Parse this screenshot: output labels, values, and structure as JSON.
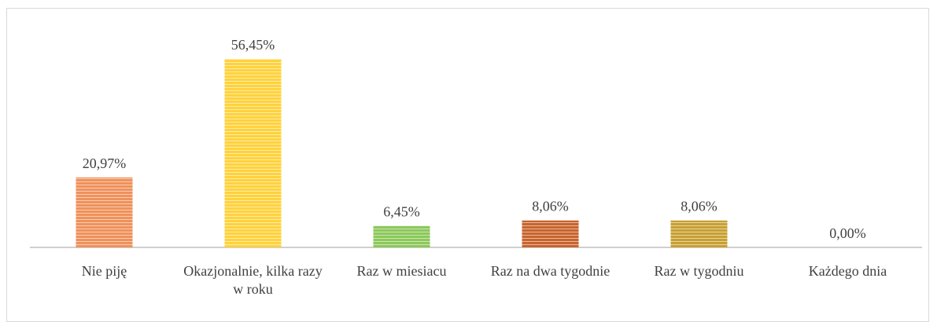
{
  "chart_data": {
    "type": "bar",
    "categories": [
      "Nie piję",
      "Okazjonalnie, kilka razy w roku",
      "Raz w miesiacu",
      "Raz na dwa tygodnie",
      "Raz w tygodniu",
      "Każdego dnia"
    ],
    "values": [
      20.97,
      56.45,
      6.45,
      8.06,
      8.06,
      0
    ],
    "value_labels": [
      "20,97%",
      "56,45%",
      "6,45%",
      "8,06%",
      "8,06%",
      "0,00%"
    ],
    "colors": [
      "#f0915a",
      "#ffd23c",
      "#8cc85a",
      "#c8642d",
      "#c8a032",
      "#999999"
    ]
  }
}
